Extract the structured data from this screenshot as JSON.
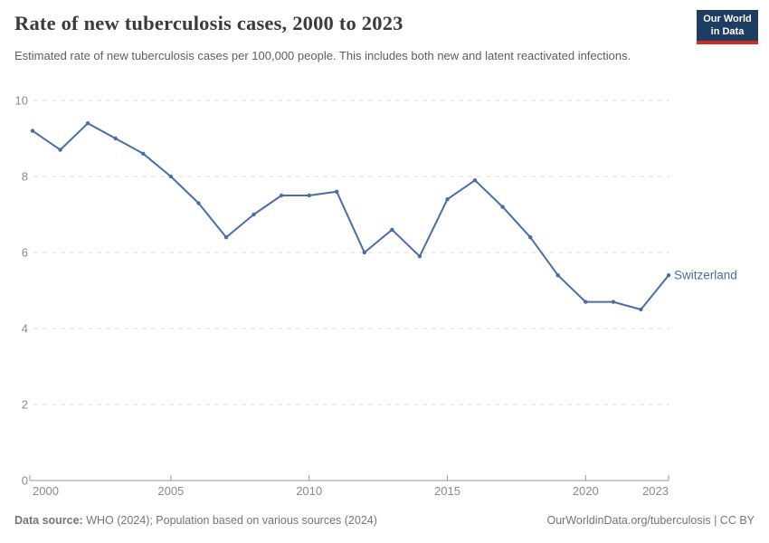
{
  "header": {
    "title": "Rate of new tuberculosis cases, 2000 to 2023",
    "subtitle": "Estimated rate of new tuberculosis cases per 100,000 people. This includes both new and latent reactivated infections."
  },
  "logo": {
    "line1": "Our World",
    "line2": "in Data",
    "bg_color": "#1d3d63",
    "accent_color": "#cb2d22"
  },
  "chart_data": {
    "type": "line",
    "title": "Rate of new tuberculosis cases, 2000 to 2023",
    "xlabel": "",
    "ylabel": "",
    "x": [
      2000,
      2001,
      2002,
      2003,
      2004,
      2005,
      2006,
      2007,
      2008,
      2009,
      2010,
      2011,
      2012,
      2013,
      2014,
      2015,
      2016,
      2017,
      2018,
      2019,
      2020,
      2021,
      2022,
      2023
    ],
    "series": [
      {
        "name": "Switzerland",
        "color": "#4c6da3",
        "values": [
          9.2,
          8.7,
          9.4,
          9.0,
          8.6,
          8.0,
          7.3,
          6.4,
          7.0,
          7.5,
          7.5,
          7.6,
          6.0,
          6.6,
          5.9,
          7.4,
          7.9,
          7.2,
          6.4,
          5.4,
          4.7,
          4.7,
          4.5,
          5.4
        ]
      }
    ],
    "ylim": [
      0,
      10
    ],
    "yticks": [
      0,
      2,
      4,
      6,
      8,
      10
    ],
    "xticks": [
      2000,
      2005,
      2010,
      2015,
      2020,
      2023
    ],
    "grid": "horizontal-dashed",
    "legend_position": "end-of-line",
    "grid_color": "#dcdcdc",
    "axis_color": "#9a9a9a",
    "tick_label_color": "#8b8b8b"
  },
  "footer": {
    "datasource_label": "Data source:",
    "datasource_rest": " WHO (2024); Population based on various sources (2024)",
    "attribution": "OurWorldinData.org/tuberculosis | CC BY"
  }
}
